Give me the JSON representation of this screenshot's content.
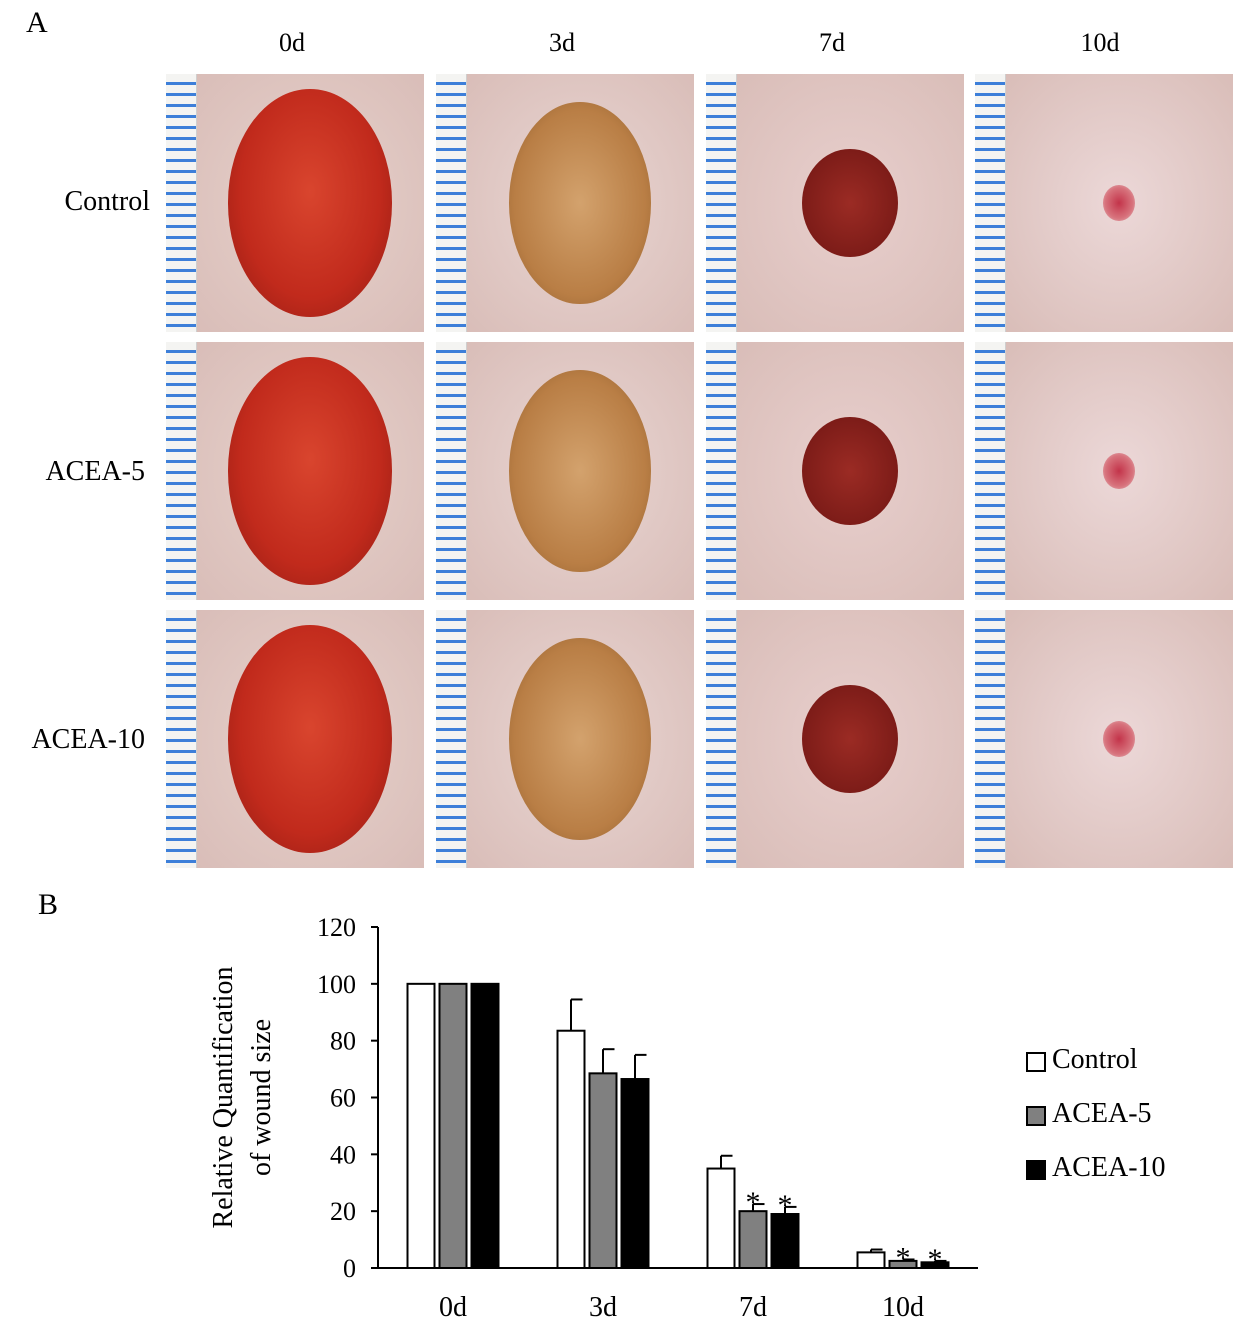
{
  "panel_a": {
    "letter": "A",
    "columns": [
      "0d",
      "3d",
      "7d",
      "10d"
    ],
    "rows": [
      "Control",
      "ACEA-5",
      "ACEA-10"
    ]
  },
  "panel_b": {
    "letter": "B"
  },
  "chart_data": {
    "type": "bar",
    "categories": [
      "0d",
      "3d",
      "7d",
      "10d"
    ],
    "series": [
      {
        "name": "Control",
        "values": [
          100,
          83.5,
          35,
          5.5
        ],
        "errors": [
          0,
          11,
          4.5,
          1
        ],
        "significant": [
          false,
          false,
          false,
          false
        ],
        "color": "#ffffff"
      },
      {
        "name": "ACEA-5",
        "values": [
          100,
          68.5,
          20,
          2.5
        ],
        "errors": [
          0,
          8.5,
          2.5,
          0.5
        ],
        "significant": [
          false,
          false,
          true,
          true
        ],
        "color": "#808080"
      },
      {
        "name": "ACEA-10",
        "values": [
          100,
          66.5,
          19,
          2
        ],
        "errors": [
          0,
          8.5,
          2.5,
          0.5
        ],
        "significant": [
          false,
          false,
          true,
          true
        ],
        "color": "#000000"
      }
    ],
    "ylabel": "Relative Quantification of wound size",
    "ylabel_lines": [
      "Relative Quantification",
      "of wound size"
    ],
    "ylim": [
      0,
      120
    ],
    "yticks": [
      0,
      20,
      40,
      60,
      80,
      100,
      120
    ],
    "significance_marker": "*",
    "legend_position": "right",
    "grid": false
  }
}
